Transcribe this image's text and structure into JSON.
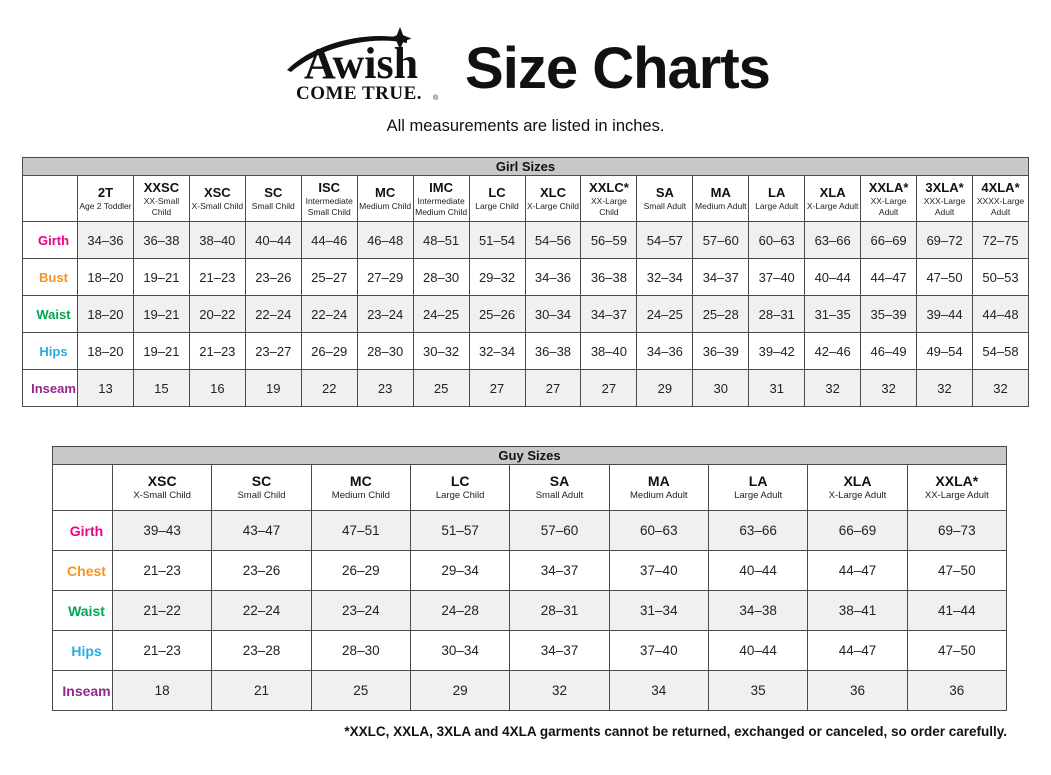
{
  "header": {
    "logo": {
      "line1": "Awish",
      "line2": "COME TRUE.",
      "reg": "®"
    },
    "title": "Size Charts",
    "subtitle": "All measurements are listed in inches."
  },
  "colors": {
    "girth": "#ec008c",
    "bust": "#f7941d",
    "chest": "#f7941d",
    "waist": "#00a651",
    "hips": "#29abe2",
    "inseam": "#92278f",
    "band_gray": "#c7c8ca",
    "row_shade": "#f0f0f1",
    "border": "#4b4b4d"
  },
  "girl_table": {
    "title": "Girl Sizes",
    "columns": [
      {
        "code": "2T",
        "desc": "Age 2 Toddler"
      },
      {
        "code": "XXSC",
        "desc": "XX-Small Child"
      },
      {
        "code": "XSC",
        "desc": "X-Small Child"
      },
      {
        "code": "SC",
        "desc": "Small Child"
      },
      {
        "code": "ISC",
        "desc": "Intermediate Small Child"
      },
      {
        "code": "MC",
        "desc": "Medium Child"
      },
      {
        "code": "IMC",
        "desc": "Intermediate Medium Child"
      },
      {
        "code": "LC",
        "desc": "Large Child"
      },
      {
        "code": "XLC",
        "desc": "X-Large Child"
      },
      {
        "code": "XXLC*",
        "desc": "XX-Large Child"
      },
      {
        "code": "SA",
        "desc": "Small Adult"
      },
      {
        "code": "MA",
        "desc": "Medium Adult"
      },
      {
        "code": "LA",
        "desc": "Large Adult"
      },
      {
        "code": "XLA",
        "desc": "X-Large Adult"
      },
      {
        "code": "XXLA*",
        "desc": "XX-Large Adult"
      },
      {
        "code": "3XLA*",
        "desc": "XXX-Large Adult"
      },
      {
        "code": "4XLA*",
        "desc": "XXXX-Large Adult"
      }
    ],
    "rows": [
      {
        "label": "Girth",
        "color": "#ec008c",
        "values": [
          "34–36",
          "36–38",
          "38–40",
          "40–44",
          "44–46",
          "46–48",
          "48–51",
          "51–54",
          "54–56",
          "56–59",
          "54–57",
          "57–60",
          "60–63",
          "63–66",
          "66–69",
          "69–72",
          "72–75"
        ]
      },
      {
        "label": "Bust",
        "color": "#f7941d",
        "values": [
          "18–20",
          "19–21",
          "21–23",
          "23–26",
          "25–27",
          "27–29",
          "28–30",
          "29–32",
          "34–36",
          "36–38",
          "32–34",
          "34–37",
          "37–40",
          "40–44",
          "44–47",
          "47–50",
          "50–53"
        ]
      },
      {
        "label": "Waist",
        "color": "#00a651",
        "values": [
          "18–20",
          "19–21",
          "20–22",
          "22–24",
          "22–24",
          "23–24",
          "24–25",
          "25–26",
          "30–34",
          "34–37",
          "24–25",
          "25–28",
          "28–31",
          "31–35",
          "35–39",
          "39–44",
          "44–48"
        ]
      },
      {
        "label": "Hips",
        "color": "#29abe2",
        "values": [
          "18–20",
          "19–21",
          "21–23",
          "23–27",
          "26–29",
          "28–30",
          "30–32",
          "32–34",
          "36–38",
          "38–40",
          "34–36",
          "36–39",
          "39–42",
          "42–46",
          "46–49",
          "49–54",
          "54–58"
        ]
      },
      {
        "label": "Inseam",
        "color": "#92278f",
        "values": [
          "13",
          "15",
          "16",
          "19",
          "22",
          "23",
          "25",
          "27",
          "27",
          "27",
          "29",
          "30",
          "31",
          "32",
          "32",
          "32",
          "32"
        ]
      }
    ]
  },
  "guy_table": {
    "title": "Guy Sizes",
    "columns": [
      {
        "code": "XSC",
        "desc": "X-Small Child"
      },
      {
        "code": "SC",
        "desc": "Small Child"
      },
      {
        "code": "MC",
        "desc": "Medium Child"
      },
      {
        "code": "LC",
        "desc": "Large Child"
      },
      {
        "code": "SA",
        "desc": "Small Adult"
      },
      {
        "code": "MA",
        "desc": "Medium Adult"
      },
      {
        "code": "LA",
        "desc": "Large Adult"
      },
      {
        "code": "XLA",
        "desc": "X-Large Adult"
      },
      {
        "code": "XXLA*",
        "desc": "XX-Large Adult"
      }
    ],
    "rows": [
      {
        "label": "Girth",
        "color": "#ec008c",
        "values": [
          "39–43",
          "43–47",
          "47–51",
          "51–57",
          "57–60",
          "60–63",
          "63–66",
          "66–69",
          "69–73"
        ]
      },
      {
        "label": "Chest",
        "color": "#f7941d",
        "values": [
          "21–23",
          "23–26",
          "26–29",
          "29–34",
          "34–37",
          "37–40",
          "40–44",
          "44–47",
          "47–50"
        ]
      },
      {
        "label": "Waist",
        "color": "#00a651",
        "values": [
          "21–22",
          "22–24",
          "23–24",
          "24–28",
          "28–31",
          "31–34",
          "34–38",
          "38–41",
          "41–44"
        ]
      },
      {
        "label": "Hips",
        "color": "#29abe2",
        "values": [
          "21–23",
          "23–28",
          "28–30",
          "30–34",
          "34–37",
          "37–40",
          "40–44",
          "44–47",
          "47–50"
        ]
      },
      {
        "label": "Inseam",
        "color": "#92278f",
        "values": [
          "18",
          "21",
          "25",
          "29",
          "32",
          "34",
          "35",
          "36",
          "36"
        ]
      }
    ]
  },
  "footnote": "*XXLC, XXLA, 3XLA and 4XLA garments cannot be returned, exchanged or canceled, so order carefully."
}
